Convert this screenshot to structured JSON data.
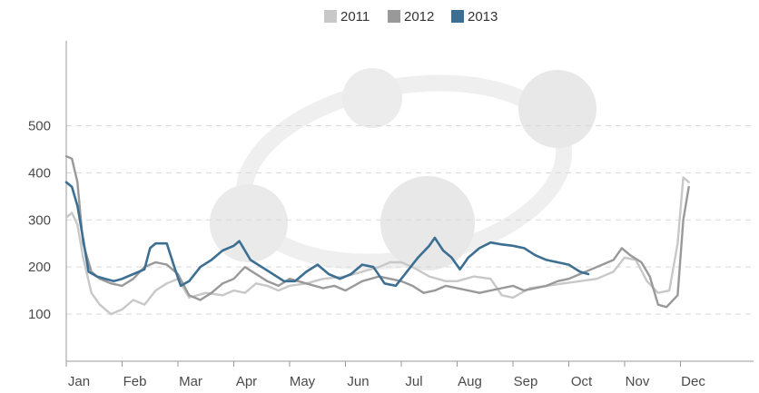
{
  "chart_data": {
    "type": "line",
    "title": "",
    "xlabel": "",
    "ylabel": "",
    "ylim": [
      0,
      680
    ],
    "x_ticks": [
      "Jan",
      "Feb",
      "Mar",
      "Apr",
      "May",
      "Jun",
      "Jul",
      "Aug",
      "Sep",
      "Oct",
      "Nov",
      "Dec"
    ],
    "y_ticks": [
      100,
      200,
      300,
      400,
      500
    ],
    "grid": "horizontal-dashed",
    "legend_position": "top-center",
    "series": [
      {
        "name": "2011",
        "color": "#c8c8c8",
        "points": [
          [
            0,
            305
          ],
          [
            0.1,
            315
          ],
          [
            0.2,
            290
          ],
          [
            0.3,
            220
          ],
          [
            0.45,
            145
          ],
          [
            0.6,
            120
          ],
          [
            0.8,
            100
          ],
          [
            1.0,
            110
          ],
          [
            1.2,
            130
          ],
          [
            1.4,
            120
          ],
          [
            1.6,
            150
          ],
          [
            1.8,
            165
          ],
          [
            2.0,
            175
          ],
          [
            2.2,
            135
          ],
          [
            2.5,
            145
          ],
          [
            2.8,
            140
          ],
          [
            3.0,
            150
          ],
          [
            3.2,
            145
          ],
          [
            3.4,
            165
          ],
          [
            3.6,
            160
          ],
          [
            3.8,
            150
          ],
          [
            4.0,
            160
          ],
          [
            4.3,
            165
          ],
          [
            4.6,
            175
          ],
          [
            5.0,
            180
          ],
          [
            5.3,
            190
          ],
          [
            5.6,
            200
          ],
          [
            5.8,
            210
          ],
          [
            6.0,
            210
          ],
          [
            6.2,
            200
          ],
          [
            6.5,
            180
          ],
          [
            6.8,
            170
          ],
          [
            7.0,
            170
          ],
          [
            7.3,
            180
          ],
          [
            7.6,
            175
          ],
          [
            7.8,
            140
          ],
          [
            8.0,
            135
          ],
          [
            8.3,
            155
          ],
          [
            8.6,
            160
          ],
          [
            8.9,
            165
          ],
          [
            9.2,
            170
          ],
          [
            9.5,
            175
          ],
          [
            9.8,
            190
          ],
          [
            10.0,
            220
          ],
          [
            10.2,
            215
          ],
          [
            10.4,
            170
          ],
          [
            10.6,
            145
          ],
          [
            10.8,
            150
          ],
          [
            10.95,
            250
          ],
          [
            11.05,
            390
          ],
          [
            11.15,
            380
          ]
        ]
      },
      {
        "name": "2012",
        "color": "#999999",
        "points": [
          [
            0,
            435
          ],
          [
            0.1,
            430
          ],
          [
            0.2,
            380
          ],
          [
            0.3,
            250
          ],
          [
            0.45,
            190
          ],
          [
            0.6,
            175
          ],
          [
            0.8,
            165
          ],
          [
            1.0,
            160
          ],
          [
            1.2,
            175
          ],
          [
            1.4,
            200
          ],
          [
            1.6,
            210
          ],
          [
            1.8,
            205
          ],
          [
            2.0,
            185
          ],
          [
            2.2,
            140
          ],
          [
            2.4,
            130
          ],
          [
            2.6,
            145
          ],
          [
            2.8,
            165
          ],
          [
            3.0,
            175
          ],
          [
            3.2,
            200
          ],
          [
            3.4,
            185
          ],
          [
            3.6,
            170
          ],
          [
            3.8,
            160
          ],
          [
            4.0,
            175
          ],
          [
            4.3,
            165
          ],
          [
            4.6,
            155
          ],
          [
            4.8,
            160
          ],
          [
            5.0,
            150
          ],
          [
            5.3,
            170
          ],
          [
            5.6,
            180
          ],
          [
            5.8,
            175
          ],
          [
            6.0,
            170
          ],
          [
            6.2,
            160
          ],
          [
            6.4,
            145
          ],
          [
            6.6,
            150
          ],
          [
            6.8,
            160
          ],
          [
            7.0,
            155
          ],
          [
            7.2,
            150
          ],
          [
            7.4,
            145
          ],
          [
            7.6,
            150
          ],
          [
            7.8,
            155
          ],
          [
            8.0,
            160
          ],
          [
            8.2,
            150
          ],
          [
            8.4,
            155
          ],
          [
            8.6,
            160
          ],
          [
            8.8,
            170
          ],
          [
            9.0,
            175
          ],
          [
            9.2,
            185
          ],
          [
            9.4,
            195
          ],
          [
            9.6,
            205
          ],
          [
            9.8,
            215
          ],
          [
            9.95,
            240
          ],
          [
            10.1,
            225
          ],
          [
            10.3,
            210
          ],
          [
            10.45,
            180
          ],
          [
            10.6,
            120
          ],
          [
            10.75,
            115
          ],
          [
            10.95,
            140
          ],
          [
            11.05,
            300
          ],
          [
            11.15,
            370
          ]
        ]
      },
      {
        "name": "2013",
        "color": "#3d6f93",
        "points": [
          [
            0,
            380
          ],
          [
            0.1,
            370
          ],
          [
            0.2,
            330
          ],
          [
            0.3,
            260
          ],
          [
            0.4,
            190
          ],
          [
            0.55,
            180
          ],
          [
            0.7,
            175
          ],
          [
            0.85,
            170
          ],
          [
            1.0,
            175
          ],
          [
            1.2,
            185
          ],
          [
            1.4,
            195
          ],
          [
            1.5,
            240
          ],
          [
            1.6,
            250
          ],
          [
            1.8,
            250
          ],
          [
            1.95,
            195
          ],
          [
            2.05,
            160
          ],
          [
            2.2,
            170
          ],
          [
            2.4,
            200
          ],
          [
            2.6,
            215
          ],
          [
            2.8,
            235
          ],
          [
            3.0,
            245
          ],
          [
            3.1,
            255
          ],
          [
            3.3,
            215
          ],
          [
            3.5,
            200
          ],
          [
            3.7,
            185
          ],
          [
            3.9,
            170
          ],
          [
            4.1,
            170
          ],
          [
            4.3,
            190
          ],
          [
            4.5,
            205
          ],
          [
            4.7,
            185
          ],
          [
            4.9,
            175
          ],
          [
            5.1,
            185
          ],
          [
            5.3,
            205
          ],
          [
            5.5,
            200
          ],
          [
            5.7,
            165
          ],
          [
            5.9,
            160
          ],
          [
            6.1,
            190
          ],
          [
            6.3,
            220
          ],
          [
            6.5,
            245
          ],
          [
            6.6,
            262
          ],
          [
            6.75,
            235
          ],
          [
            6.9,
            220
          ],
          [
            7.05,
            195
          ],
          [
            7.2,
            220
          ],
          [
            7.4,
            240
          ],
          [
            7.6,
            252
          ],
          [
            7.8,
            248
          ],
          [
            8.0,
            245
          ],
          [
            8.2,
            240
          ],
          [
            8.4,
            225
          ],
          [
            8.6,
            215
          ],
          [
            8.8,
            210
          ],
          [
            9.0,
            205
          ],
          [
            9.2,
            190
          ],
          [
            9.35,
            185
          ]
        ]
      }
    ]
  }
}
